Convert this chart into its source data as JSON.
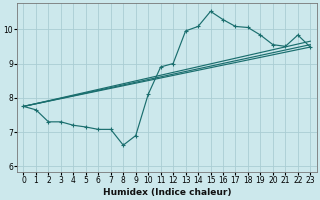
{
  "xlabel": "Humidex (Indice chaleur)",
  "bg_color": "#cce8ec",
  "grid_color": "#aacdd4",
  "line_color": "#1a6e6e",
  "xlim": [
    -0.5,
    23.5
  ],
  "ylim": [
    5.85,
    10.75
  ],
  "yticks": [
    6,
    7,
    8,
    9,
    10
  ],
  "xticks": [
    0,
    1,
    2,
    3,
    4,
    5,
    6,
    7,
    8,
    9,
    10,
    11,
    12,
    13,
    14,
    15,
    16,
    17,
    18,
    19,
    20,
    21,
    22,
    23
  ],
  "curve": {
    "x": [
      0,
      1,
      2,
      3,
      4,
      5,
      6,
      7,
      8,
      9,
      10,
      11,
      12,
      13,
      14,
      15,
      16,
      17,
      18,
      19,
      20,
      21,
      22,
      23
    ],
    "y": [
      7.75,
      7.65,
      7.3,
      7.3,
      7.2,
      7.15,
      7.08,
      7.08,
      6.62,
      6.9,
      8.1,
      8.9,
      9.0,
      9.95,
      10.08,
      10.52,
      10.28,
      10.08,
      10.05,
      9.83,
      9.55,
      9.5,
      9.83,
      9.48
    ]
  },
  "straight_lines": [
    {
      "x": [
        0,
        23
      ],
      "y": [
        7.75,
        9.48
      ]
    },
    {
      "x": [
        0,
        23
      ],
      "y": [
        7.75,
        9.55
      ]
    },
    {
      "x": [
        0,
        23
      ],
      "y": [
        7.75,
        9.65
      ]
    }
  ]
}
